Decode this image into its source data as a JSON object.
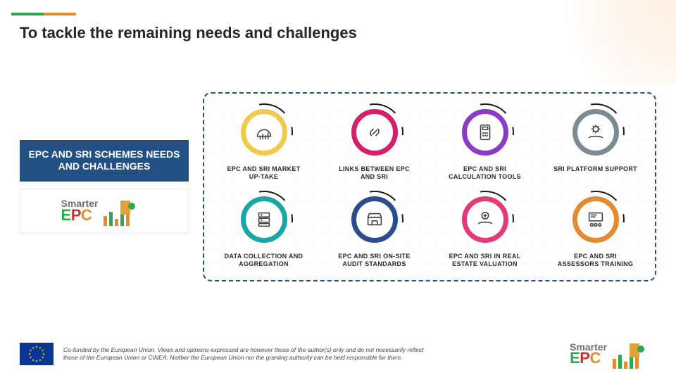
{
  "accent_bar": {
    "segments": [
      {
        "w": 46,
        "color": "#31a84f"
      },
      {
        "w": 46,
        "color": "#e58a2e"
      }
    ]
  },
  "title": "To tackle the remaining needs and challenges",
  "title_fontsize": 22,
  "title_color": "#262626",
  "banner": {
    "text": "EPC AND SRI SCHEMES NEEDS AND CHALLENGES",
    "bg": "#225082",
    "fg": "#ffffff"
  },
  "dashed_border_color": "#225082",
  "items": [
    {
      "label": "EPC AND SRI MARKET UP-TAKE",
      "ring_color": "#f2c94c",
      "arc_dash_color": "#1a1a1a",
      "icon": "helmet-chart"
    },
    {
      "label": "LINKS BETWEEN EPC AND SRI",
      "ring_color": "#d81e6a",
      "arc_dash_color": "#1a1a1a",
      "icon": "link"
    },
    {
      "label": "EPC AND SRI CALCULATION TOOLS",
      "ring_color": "#8a3cc7",
      "arc_dash_color": "#1a1a1a",
      "icon": "calculator"
    },
    {
      "label": "SRI PLATFORM SUPPORT",
      "ring_color": "#7b8b93",
      "arc_dash_color": "#1a1a1a",
      "icon": "gear-hand"
    },
    {
      "label": "DATA COLLECTION AND AGGREGATION",
      "ring_color": "#1aa6a6",
      "arc_dash_color": "#1a1a1a",
      "icon": "server"
    },
    {
      "label": "EPC AND SRI ON-SITE AUDIT STANDARDS",
      "ring_color": "#2a4d8f",
      "arc_dash_color": "#1a1a1a",
      "icon": "storefront"
    },
    {
      "label": "EPC AND SRI IN REAL ESTATE VALUATION",
      "ring_color": "#e6397a",
      "arc_dash_color": "#1a1a1a",
      "icon": "coin-hand"
    },
    {
      "label": "EPC AND SRI ASSESSORS TRAINING",
      "ring_color": "#e58a2e",
      "arc_dash_color": "#1a1a1a",
      "icon": "class"
    }
  ],
  "caption_fontsize": 9,
  "caption_color": "#2a2a2a",
  "disclaimer": "Co-funded by the European Union. Views and opinions expressed are however those of the author(s) only and do not necessarily reflect those of the European Union or CINEA. Neither the European Union nor the granting authority can be held responsible for them.",
  "eu_flag": {
    "bg": "#0a3694",
    "star": "#ffcc00"
  },
  "logo": {
    "word1": "Smarter",
    "word2_parts": [
      {
        "t": "E",
        "c": "#31a84f"
      },
      {
        "t": "P",
        "c": "#c83232"
      },
      {
        "t": "C",
        "c": "#e58a2e"
      }
    ],
    "bars_colors": [
      "#e58a2e",
      "#31a84f",
      "#e58a2e",
      "#31a84f",
      "#e58a2e"
    ],
    "wifi_color": "#e58a2e",
    "building_color": "#e0a23a",
    "gear_color": "#31a84f"
  }
}
